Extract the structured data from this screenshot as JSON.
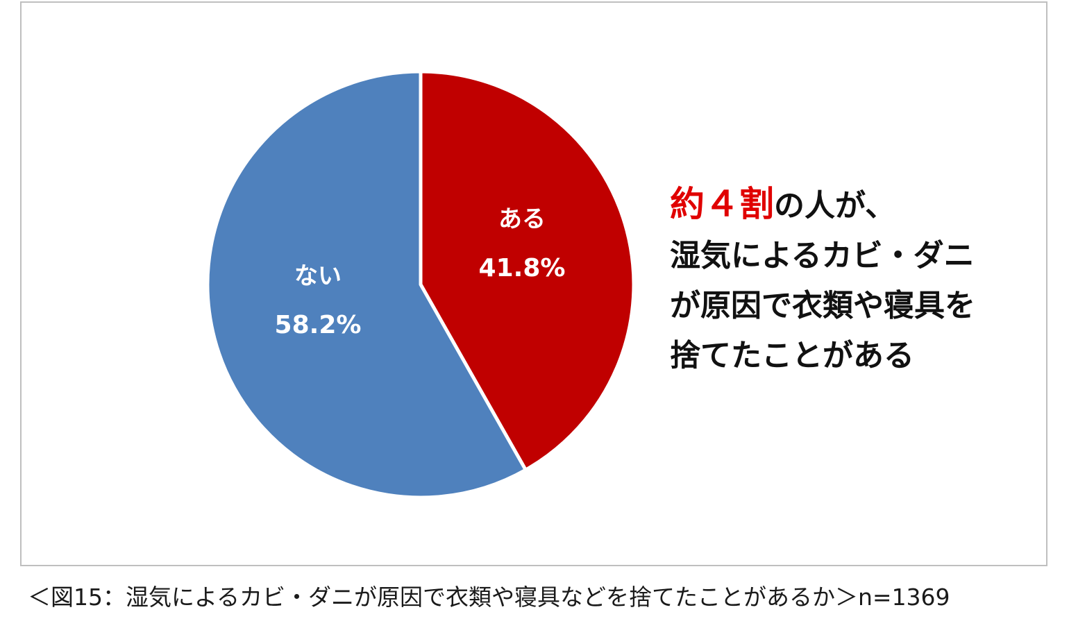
{
  "chart_data": {
    "type": "pie",
    "categories": [
      "ある",
      "ない"
    ],
    "values": [
      41.8,
      58.2
    ],
    "value_labels": [
      "41.8%",
      "58.2%"
    ],
    "colors": [
      "#c00000",
      "#4f81bd"
    ],
    "start": "12 o'clock, clockwise",
    "legend": "none (labels on slices)"
  },
  "callout": {
    "highlight": "約４割",
    "line1_rest": "の人が、",
    "line2": "湿気によるカビ・ダニ",
    "line3": "が原因で衣類や寝具を",
    "line4": "捨てたことがある",
    "highlight_color": "#e00000"
  },
  "caption": "＜図15：湿気によるカビ・ダニが原因で衣類や寝具などを捨てたことがあるか＞n=1369"
}
